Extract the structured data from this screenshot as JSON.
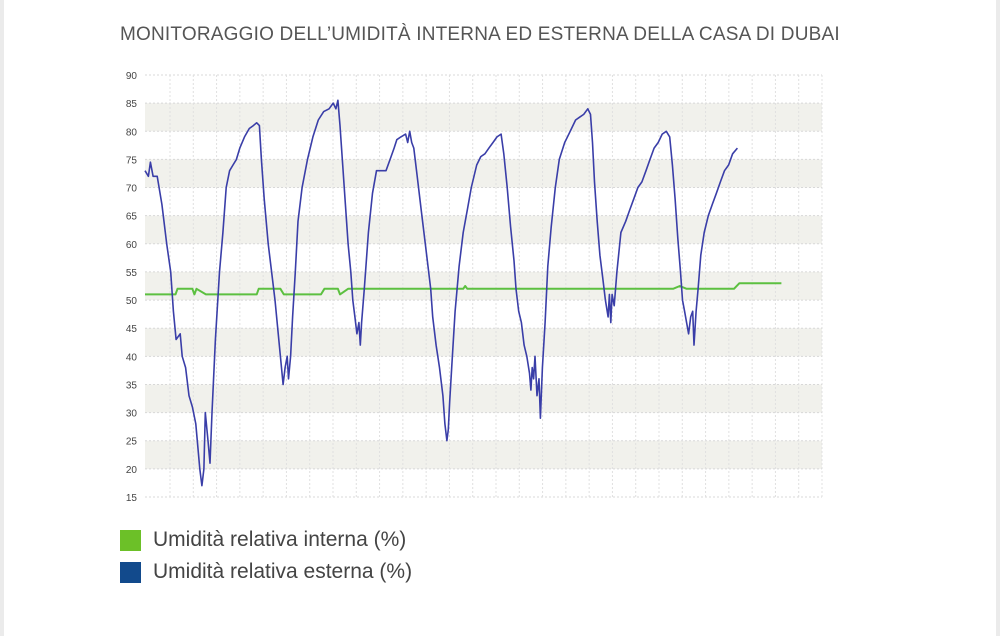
{
  "title": "MONITORAGGIO DELL’UMIDITÀ INTERNA ED ESTERNA DELLA CASA DI DUBAI",
  "legend": [
    {
      "label": "Umidità relativa interna (%)",
      "color": "#6cc028"
    },
    {
      "label": "Umidità relativa esterna (%)",
      "color": "#124a8c"
    }
  ],
  "chart_data": {
    "type": "line",
    "title": "MONITORAGGIO DELL’UMIDITÀ INTERNA ED ESTERNA DELLA CASA DI DUBAI",
    "xlabel": "",
    "ylabel": "",
    "ylim": [
      15,
      90
    ],
    "yticks": [
      15,
      20,
      25,
      30,
      35,
      40,
      45,
      50,
      55,
      60,
      65,
      70,
      75,
      80,
      85,
      90
    ],
    "xlim": [
      0,
      1000
    ],
    "grid": true,
    "legend_position": "bottom-left",
    "series": [
      {
        "name": "Umidità relativa interna (%)",
        "color": "#5cc040",
        "points": [
          [
            0,
            51
          ],
          [
            45,
            51
          ],
          [
            48,
            52
          ],
          [
            70,
            52
          ],
          [
            73,
            51
          ],
          [
            76,
            52
          ],
          [
            90,
            51
          ],
          [
            110,
            51
          ],
          [
            165,
            51
          ],
          [
            168,
            52
          ],
          [
            200,
            52
          ],
          [
            205,
            51
          ],
          [
            260,
            51
          ],
          [
            265,
            52
          ],
          [
            285,
            52
          ],
          [
            288,
            51
          ],
          [
            300,
            52
          ],
          [
            330,
            52
          ],
          [
            470,
            52
          ],
          [
            473,
            52.5
          ],
          [
            476,
            52
          ],
          [
            590,
            52
          ],
          [
            780,
            52
          ],
          [
            790,
            52.5
          ],
          [
            800,
            52
          ],
          [
            870,
            52
          ],
          [
            878,
            53
          ],
          [
            940,
            53
          ]
        ]
      },
      {
        "name": "Umidità relativa esterna (%)",
        "color": "#3a3ea8",
        "points": [
          [
            0,
            73
          ],
          [
            5,
            72
          ],
          [
            8,
            74.5
          ],
          [
            12,
            72
          ],
          [
            18,
            72
          ],
          [
            25,
            67
          ],
          [
            32,
            60
          ],
          [
            38,
            55
          ],
          [
            42,
            48
          ],
          [
            46,
            43
          ],
          [
            52,
            44
          ],
          [
            55,
            40
          ],
          [
            60,
            38
          ],
          [
            65,
            33
          ],
          [
            70,
            31
          ],
          [
            75,
            28
          ],
          [
            78,
            24
          ],
          [
            81,
            20
          ],
          [
            84,
            17
          ],
          [
            87,
            20
          ],
          [
            89,
            30
          ],
          [
            93,
            25
          ],
          [
            96,
            21
          ],
          [
            99,
            30
          ],
          [
            104,
            43
          ],
          [
            110,
            55
          ],
          [
            115,
            62
          ],
          [
            120,
            70
          ],
          [
            125,
            73
          ],
          [
            130,
            74
          ],
          [
            135,
            75
          ],
          [
            140,
            77
          ],
          [
            147,
            79
          ],
          [
            154,
            80.5
          ],
          [
            160,
            81
          ],
          [
            165,
            81.5
          ],
          [
            169,
            81
          ],
          [
            172,
            75
          ],
          [
            176,
            68
          ],
          [
            182,
            60
          ],
          [
            188,
            54
          ],
          [
            192,
            50
          ],
          [
            196,
            45
          ],
          [
            200,
            40
          ],
          [
            204,
            35
          ],
          [
            207,
            38
          ],
          [
            210,
            40
          ],
          [
            212,
            36
          ],
          [
            215,
            40
          ],
          [
            218,
            47
          ],
          [
            222,
            55
          ],
          [
            226,
            64
          ],
          [
            232,
            70
          ],
          [
            240,
            75
          ],
          [
            248,
            79
          ],
          [
            256,
            82
          ],
          [
            264,
            83.5
          ],
          [
            272,
            84
          ],
          [
            278,
            85
          ],
          [
            282,
            84
          ],
          [
            285,
            85.5
          ],
          [
            288,
            81
          ],
          [
            292,
            74
          ],
          [
            296,
            67
          ],
          [
            300,
            60
          ],
          [
            304,
            55
          ],
          [
            307,
            50
          ],
          [
            310,
            47
          ],
          [
            313,
            44
          ],
          [
            316,
            46
          ],
          [
            318,
            42
          ],
          [
            320,
            46
          ],
          [
            324,
            52
          ],
          [
            330,
            62
          ],
          [
            336,
            69
          ],
          [
            342,
            73
          ],
          [
            350,
            73
          ],
          [
            356,
            73
          ],
          [
            362,
            75
          ],
          [
            368,
            77
          ],
          [
            372,
            78.5
          ],
          [
            378,
            79
          ],
          [
            385,
            79.5
          ],
          [
            388,
            78
          ],
          [
            391,
            80
          ],
          [
            394,
            78
          ],
          [
            397,
            77
          ],
          [
            402,
            72
          ],
          [
            408,
            66
          ],
          [
            414,
            60
          ],
          [
            418,
            56
          ],
          [
            422,
            52
          ],
          [
            425,
            47
          ],
          [
            430,
            42
          ],
          [
            435,
            38
          ],
          [
            440,
            33
          ],
          [
            443,
            28
          ],
          [
            446,
            25
          ],
          [
            448,
            27
          ],
          [
            450,
            32
          ],
          [
            453,
            38
          ],
          [
            458,
            48
          ],
          [
            464,
            56
          ],
          [
            470,
            62
          ],
          [
            476,
            66
          ],
          [
            482,
            70
          ],
          [
            490,
            74
          ],
          [
            496,
            75.5
          ],
          [
            502,
            76
          ],
          [
            508,
            77
          ],
          [
            514,
            78
          ],
          [
            520,
            79
          ],
          [
            526,
            79.5
          ],
          [
            530,
            76
          ],
          [
            535,
            70
          ],
          [
            540,
            63
          ],
          [
            545,
            57
          ],
          [
            548,
            52
          ],
          [
            552,
            48
          ],
          [
            556,
            46
          ],
          [
            560,
            42
          ],
          [
            564,
            40
          ],
          [
            568,
            37
          ],
          [
            570,
            34
          ],
          [
            572,
            38
          ],
          [
            574,
            36
          ],
          [
            576,
            40
          ],
          [
            579,
            33
          ],
          [
            582,
            36
          ],
          [
            584,
            29
          ],
          [
            587,
            38
          ],
          [
            591,
            46
          ],
          [
            595,
            56
          ],
          [
            600,
            63
          ],
          [
            606,
            70
          ],
          [
            612,
            75
          ],
          [
            620,
            78
          ],
          [
            628,
            80
          ],
          [
            636,
            82
          ],
          [
            642,
            82.5
          ],
          [
            648,
            83
          ],
          [
            654,
            84
          ],
          [
            658,
            83
          ],
          [
            661,
            78
          ],
          [
            664,
            71
          ],
          [
            668,
            64
          ],
          [
            672,
            58
          ],
          [
            676,
            54
          ],
          [
            680,
            50
          ],
          [
            684,
            47
          ],
          [
            686,
            51
          ],
          [
            688,
            46
          ],
          [
            690,
            51
          ],
          [
            693,
            49
          ],
          [
            697,
            55
          ],
          [
            703,
            62
          ],
          [
            710,
            64
          ],
          [
            716,
            66
          ],
          [
            722,
            68
          ],
          [
            728,
            70
          ],
          [
            734,
            71
          ],
          [
            740,
            73
          ],
          [
            746,
            75
          ],
          [
            752,
            77
          ],
          [
            758,
            78
          ],
          [
            764,
            79.5
          ],
          [
            770,
            80
          ],
          [
            775,
            79
          ],
          [
            779,
            74
          ],
          [
            783,
            68
          ],
          [
            787,
            61
          ],
          [
            791,
            55
          ],
          [
            794,
            50
          ],
          [
            797,
            48
          ],
          [
            800,
            46
          ],
          [
            803,
            44
          ],
          [
            806,
            47
          ],
          [
            809,
            48
          ],
          [
            811,
            42
          ],
          [
            814,
            48
          ],
          [
            817,
            52
          ],
          [
            821,
            58
          ],
          [
            826,
            62
          ],
          [
            832,
            65
          ],
          [
            838,
            67
          ],
          [
            844,
            69
          ],
          [
            850,
            71
          ],
          [
            856,
            73
          ],
          [
            862,
            74
          ],
          [
            868,
            76
          ],
          [
            875,
            77
          ]
        ]
      }
    ]
  }
}
